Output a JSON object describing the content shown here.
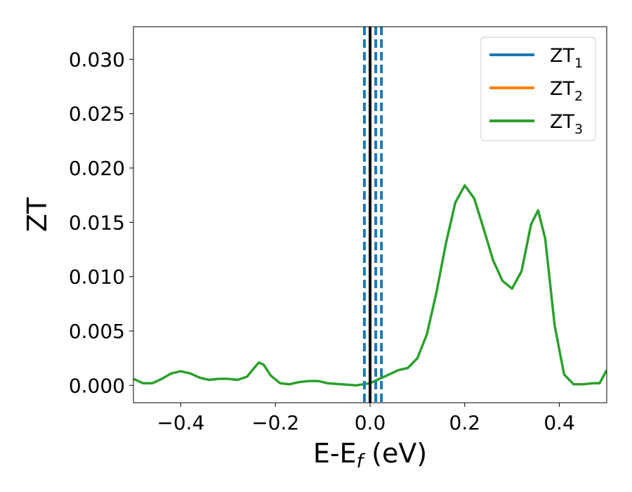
{
  "chart_data": {
    "type": "line",
    "title": "",
    "xlabel": "E-E",
    "xlabel_sub": "f",
    "xlabel_suffix": " (eV)",
    "ylabel": "ZT",
    "xlim": [
      -0.5,
      0.5
    ],
    "ylim": [
      -0.0016,
      0.033
    ],
    "xticks": [
      -0.4,
      -0.2,
      0.0,
      0.2,
      0.4
    ],
    "xtick_labels": [
      "−0.4",
      "−0.2",
      "0.0",
      "0.2",
      "0.4"
    ],
    "yticks": [
      0.0,
      0.005,
      0.01,
      0.015,
      0.02,
      0.025,
      0.03
    ],
    "ytick_labels": [
      "0.000",
      "0.005",
      "0.010",
      "0.015",
      "0.020",
      "0.025",
      "0.030"
    ],
    "grid": false,
    "legend_position": "top-right",
    "series": [
      {
        "name": "ZT",
        "name_sub": "1",
        "color": "#1f77b4",
        "points": []
      },
      {
        "name": "ZT",
        "name_sub": "2",
        "color": "#ff7f0e",
        "points": []
      },
      {
        "name": "ZT",
        "name_sub": "3",
        "color": "#2ca02c",
        "points": [
          [
            -0.5,
            0.0006
          ],
          [
            -0.48,
            0.0002
          ],
          [
            -0.46,
            0.0002
          ],
          [
            -0.44,
            0.0006
          ],
          [
            -0.42,
            0.0011
          ],
          [
            -0.4,
            0.0013
          ],
          [
            -0.38,
            0.0011
          ],
          [
            -0.36,
            0.0007
          ],
          [
            -0.34,
            0.0005
          ],
          [
            -0.32,
            0.0006
          ],
          [
            -0.3,
            0.0006
          ],
          [
            -0.28,
            0.0005
          ],
          [
            -0.26,
            0.0008
          ],
          [
            -0.245,
            0.0016
          ],
          [
            -0.235,
            0.0021
          ],
          [
            -0.225,
            0.0019
          ],
          [
            -0.21,
            0.0009
          ],
          [
            -0.19,
            0.0002
          ],
          [
            -0.17,
            0.0001
          ],
          [
            -0.15,
            0.0003
          ],
          [
            -0.13,
            0.0004
          ],
          [
            -0.11,
            0.0004
          ],
          [
            -0.09,
            0.0002
          ],
          [
            -0.06,
            0.0001
          ],
          [
            -0.03,
            0.0
          ],
          [
            0.0,
            0.0002
          ],
          [
            0.02,
            0.0006
          ],
          [
            0.04,
            0.001
          ],
          [
            0.06,
            0.0014
          ],
          [
            0.08,
            0.0016
          ],
          [
            0.1,
            0.0025
          ],
          [
            0.12,
            0.0047
          ],
          [
            0.14,
            0.0085
          ],
          [
            0.16,
            0.013
          ],
          [
            0.18,
            0.0168
          ],
          [
            0.2,
            0.0184
          ],
          [
            0.22,
            0.0172
          ],
          [
            0.24,
            0.0144
          ],
          [
            0.26,
            0.0115
          ],
          [
            0.28,
            0.0096
          ],
          [
            0.3,
            0.0089
          ],
          [
            0.32,
            0.0105
          ],
          [
            0.34,
            0.0148
          ],
          [
            0.355,
            0.0161
          ],
          [
            0.37,
            0.0135
          ],
          [
            0.39,
            0.0055
          ],
          [
            0.41,
            0.001
          ],
          [
            0.43,
            0.0001
          ],
          [
            0.45,
            0.0001
          ],
          [
            0.47,
            0.0002
          ],
          [
            0.485,
            0.0002
          ],
          [
            0.5,
            0.0014
          ]
        ]
      }
    ],
    "vlines": [
      {
        "x": -0.012,
        "style": "dashed",
        "color": "#1f77b4"
      },
      {
        "x": 0.012,
        "style": "dashed",
        "color": "#1f77b4"
      },
      {
        "x": 0.024,
        "style": "dashed",
        "color": "#1f77b4"
      },
      {
        "x": 0.0,
        "style": "solid",
        "color": "#000000"
      }
    ]
  }
}
